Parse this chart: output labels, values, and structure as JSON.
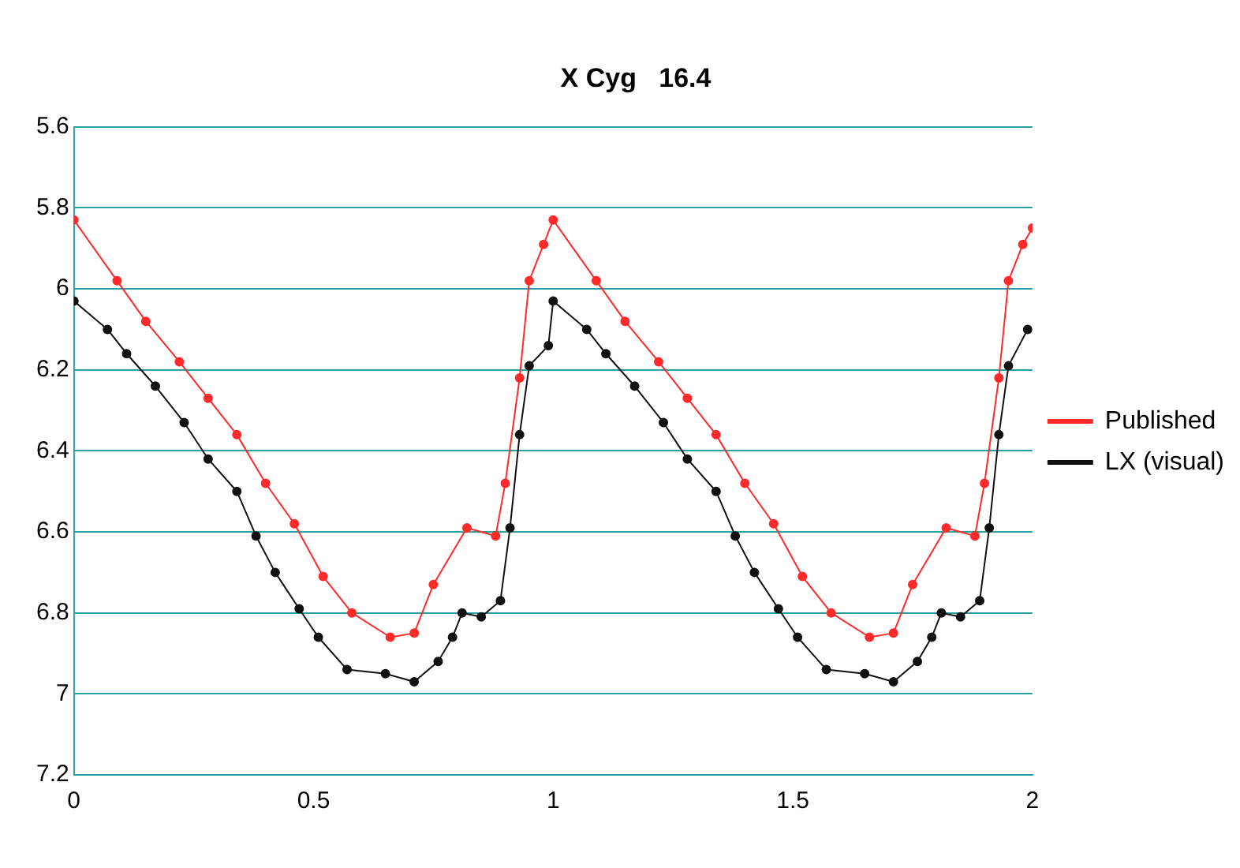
{
  "chart_data": {
    "type": "line",
    "title": "X Cyg   16.4",
    "xlim": [
      0,
      2
    ],
    "xticks": [
      0,
      0.5,
      1,
      1.5,
      2
    ],
    "ylim": [
      7.2,
      5.6
    ],
    "yticks": [
      5.6,
      5.8,
      6,
      6.2,
      6.4,
      6.6,
      6.8,
      7,
      7.2
    ],
    "grid": "y",
    "legend": "right",
    "marker": "circle",
    "line_style": "solid",
    "series": [
      {
        "name": "Published",
        "color": "#ff2a2a",
        "x": [
          0,
          0.09,
          0.15,
          0.22,
          0.28,
          0.34,
          0.4,
          0.46,
          0.52,
          0.58,
          0.66,
          0.71,
          0.75,
          0.82,
          0.88,
          0.9,
          0.93,
          0.95,
          0.98,
          1,
          1.09,
          1.15,
          1.22,
          1.28,
          1.34,
          1.4,
          1.46,
          1.52,
          1.58,
          1.66,
          1.71,
          1.75,
          1.82,
          1.88,
          1.9,
          1.93,
          1.95,
          1.98,
          2
        ],
        "values": [
          5.83,
          5.98,
          6.08,
          6.18,
          6.27,
          6.36,
          6.48,
          6.58,
          6.71,
          6.8,
          6.86,
          6.85,
          6.73,
          6.59,
          6.61,
          6.48,
          6.22,
          5.98,
          5.89,
          5.83,
          5.98,
          6.08,
          6.18,
          6.27,
          6.36,
          6.48,
          6.58,
          6.71,
          6.8,
          6.86,
          6.85,
          6.73,
          6.59,
          6.61,
          6.48,
          6.22,
          5.98,
          5.89,
          5.85
        ]
      },
      {
        "name": "LX (visual)",
        "color": "#111111",
        "x": [
          0,
          0.07,
          0.11,
          0.17,
          0.23,
          0.28,
          0.34,
          0.38,
          0.42,
          0.47,
          0.51,
          0.57,
          0.65,
          0.71,
          0.76,
          0.79,
          0.81,
          0.85,
          0.89,
          0.91,
          0.93,
          0.95,
          0.99,
          1,
          1.07,
          1.11,
          1.17,
          1.23,
          1.28,
          1.34,
          1.38,
          1.42,
          1.47,
          1.51,
          1.57,
          1.65,
          1.71,
          1.76,
          1.79,
          1.81,
          1.85,
          1.89,
          1.91,
          1.93,
          1.95,
          1.99
        ],
        "values": [
          6.03,
          6.1,
          6.16,
          6.24,
          6.33,
          6.42,
          6.5,
          6.61,
          6.7,
          6.79,
          6.86,
          6.94,
          6.95,
          6.97,
          6.92,
          6.86,
          6.8,
          6.81,
          6.77,
          6.59,
          6.36,
          6.19,
          6.14,
          6.03,
          6.1,
          6.16,
          6.24,
          6.33,
          6.42,
          6.5,
          6.61,
          6.7,
          6.79,
          6.86,
          6.94,
          6.95,
          6.97,
          6.92,
          6.86,
          6.8,
          6.81,
          6.77,
          6.59,
          6.36,
          6.19,
          6.1
        ]
      }
    ]
  }
}
